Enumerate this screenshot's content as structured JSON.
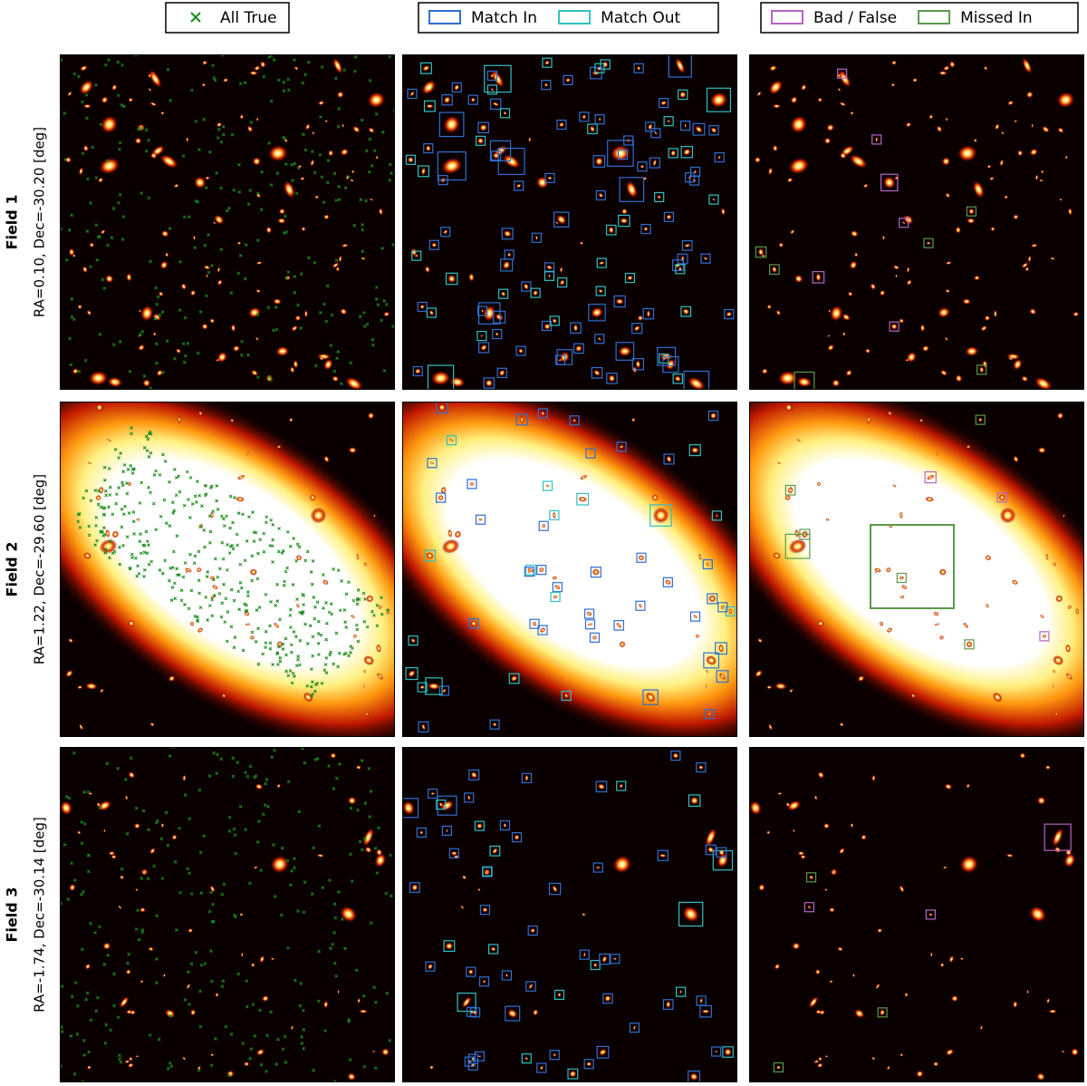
{
  "legends": [
    {
      "items": [
        {
          "label": "All True",
          "marker": "x",
          "color": "#1a8a1a"
        }
      ]
    },
    {
      "items": [
        {
          "label": "Match In",
          "marker": "box",
          "color": "#2f6fd0"
        },
        {
          "label": "Match Out",
          "marker": "box",
          "color": "#2fc0c0"
        }
      ]
    },
    {
      "items": [
        {
          "label": "Bad / False",
          "marker": "box",
          "color": "#b565c8"
        },
        {
          "label": "Missed In",
          "marker": "box",
          "color": "#5a9a4a"
        }
      ]
    }
  ],
  "rows": [
    {
      "title": "Field 1",
      "coords": "RA=0.10, Dec=-30.20 [deg]"
    },
    {
      "title": "Field 2",
      "coords": "RA=1.22, Dec=-29.60 [deg]"
    },
    {
      "title": "Field 3",
      "coords": "RA=-1.74, Dec=-30.14 [deg]"
    }
  ]
}
